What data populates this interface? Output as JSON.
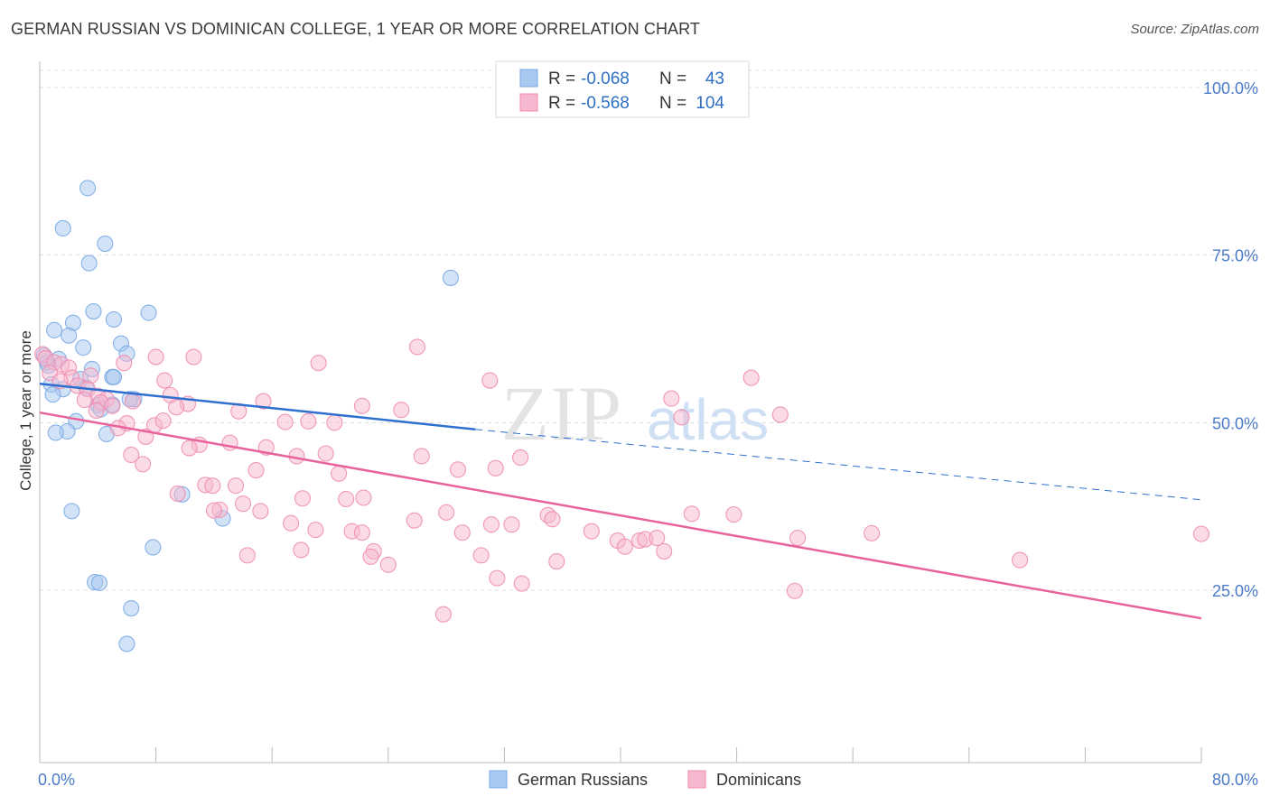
{
  "title": "GERMAN RUSSIAN VS DOMINICAN COLLEGE, 1 YEAR OR MORE CORRELATION CHART",
  "source": "Source: ZipAtlas.com",
  "watermark": {
    "zip": "ZIP",
    "atlas": "atlas"
  },
  "legend_top": {
    "rows": [
      {
        "r_label": "R =",
        "r_value": "-0.068",
        "n_label": "N =",
        "n_value": "43",
        "color": "#a8c8f0"
      },
      {
        "r_label": "R =",
        "r_value": "-0.568",
        "n_label": "N =",
        "n_value": "104",
        "color": "#f6b8ce"
      }
    ]
  },
  "chart_data": {
    "type": "scatter",
    "xlabel": "",
    "ylabel": "College, 1 year or more",
    "xlim": [
      0,
      80
    ],
    "ylim": [
      0,
      105
    ],
    "x_tick_labels": {
      "left": "0.0%",
      "right": "80.0%"
    },
    "y_ticks": [
      {
        "value": 100,
        "label": "100.0%"
      },
      {
        "value": 75,
        "label": "75.0%"
      },
      {
        "value": 50,
        "label": "50.0%"
      },
      {
        "value": 25,
        "label": "25.0%"
      }
    ],
    "grid": true,
    "legend_position": "top-center",
    "series": [
      {
        "name": "German Russians",
        "color": "#7aaae6",
        "fill": "#a8c8f0",
        "trend": {
          "x0": 0,
          "y0": 55.8,
          "x1": 30,
          "y1": 49.0,
          "dash_to_x": 80,
          "dash_to_y": 38.5
        },
        "points": [
          [
            3.3,
            85.0
          ],
          [
            1.6,
            79.0
          ],
          [
            4.5,
            76.7
          ],
          [
            3.4,
            73.8
          ],
          [
            28.3,
            71.6
          ],
          [
            3.7,
            66.6
          ],
          [
            7.5,
            66.4
          ],
          [
            5.1,
            65.4
          ],
          [
            2.3,
            64.9
          ],
          [
            1.0,
            63.8
          ],
          [
            2.0,
            63.0
          ],
          [
            3.0,
            61.2
          ],
          [
            5.6,
            61.8
          ],
          [
            6.0,
            60.3
          ],
          [
            0.3,
            60.0
          ],
          [
            1.3,
            59.5
          ],
          [
            0.5,
            59.0
          ],
          [
            0.6,
            58.5
          ],
          [
            3.6,
            58.0
          ],
          [
            0.8,
            55.7
          ],
          [
            2.8,
            56.5
          ],
          [
            5.0,
            56.8
          ],
          [
            5.1,
            56.8
          ],
          [
            3.2,
            55.2
          ],
          [
            1.6,
            55.0
          ],
          [
            0.9,
            54.2
          ],
          [
            6.5,
            53.5
          ],
          [
            4.0,
            52.6
          ],
          [
            5.0,
            52.7
          ],
          [
            4.2,
            52.0
          ],
          [
            2.5,
            50.2
          ],
          [
            1.9,
            48.7
          ],
          [
            1.1,
            48.5
          ],
          [
            4.6,
            48.3
          ],
          [
            9.8,
            39.3
          ],
          [
            12.6,
            35.7
          ],
          [
            2.2,
            36.8
          ],
          [
            7.8,
            31.4
          ],
          [
            3.8,
            26.2
          ],
          [
            4.1,
            26.1
          ],
          [
            6.3,
            22.3
          ],
          [
            6.0,
            17.0
          ],
          [
            6.2,
            53.5
          ]
        ]
      },
      {
        "name": "Dominicans",
        "color": "#f08db0",
        "fill": "#f6b8ce",
        "trend": {
          "x0": 0,
          "y0": 51.5,
          "x1": 80,
          "y1": 20.8
        },
        "points": [
          [
            0.2,
            60.2
          ],
          [
            0.4,
            59.6
          ],
          [
            1.0,
            59.0
          ],
          [
            1.5,
            58.7
          ],
          [
            2.0,
            58.2
          ],
          [
            0.7,
            57.4
          ],
          [
            3.5,
            57.0
          ],
          [
            2.2,
            56.7
          ],
          [
            1.4,
            56.2
          ],
          [
            2.6,
            55.5
          ],
          [
            3.3,
            55.0
          ],
          [
            4.0,
            54.0
          ],
          [
            4.6,
            53.5
          ],
          [
            3.1,
            53.4
          ],
          [
            4.2,
            53.0
          ],
          [
            5.0,
            52.5
          ],
          [
            3.9,
            51.8
          ],
          [
            6.4,
            53.2
          ],
          [
            5.8,
            58.9
          ],
          [
            8.0,
            59.8
          ],
          [
            10.6,
            59.8
          ],
          [
            26.0,
            61.3
          ],
          [
            19.2,
            58.9
          ],
          [
            8.6,
            56.3
          ],
          [
            9.0,
            54.1
          ],
          [
            10.2,
            52.8
          ],
          [
            9.4,
            52.3
          ],
          [
            15.4,
            53.2
          ],
          [
            13.7,
            51.7
          ],
          [
            20.3,
            50.0
          ],
          [
            18.5,
            50.2
          ],
          [
            16.9,
            50.1
          ],
          [
            22.2,
            52.5
          ],
          [
            24.9,
            51.9
          ],
          [
            6.0,
            49.9
          ],
          [
            7.9,
            49.6
          ],
          [
            5.4,
            49.2
          ],
          [
            8.5,
            50.3
          ],
          [
            7.3,
            47.9
          ],
          [
            11.0,
            46.7
          ],
          [
            13.1,
            47.0
          ],
          [
            15.6,
            46.3
          ],
          [
            10.3,
            46.2
          ],
          [
            17.7,
            45.0
          ],
          [
            19.7,
            45.4
          ],
          [
            6.3,
            45.2
          ],
          [
            7.1,
            43.8
          ],
          [
            14.9,
            42.9
          ],
          [
            20.6,
            42.4
          ],
          [
            26.3,
            45.0
          ],
          [
            28.8,
            43.0
          ],
          [
            31.4,
            43.2
          ],
          [
            33.1,
            44.8
          ],
          [
            31.0,
            56.3
          ],
          [
            43.5,
            53.6
          ],
          [
            44.2,
            50.8
          ],
          [
            49.0,
            56.7
          ],
          [
            51.0,
            51.2
          ],
          [
            11.4,
            40.7
          ],
          [
            13.5,
            40.6
          ],
          [
            11.9,
            40.6
          ],
          [
            9.5,
            39.4
          ],
          [
            18.1,
            38.7
          ],
          [
            21.1,
            38.6
          ],
          [
            22.3,
            38.8
          ],
          [
            14.0,
            37.9
          ],
          [
            12.4,
            37.0
          ],
          [
            15.2,
            36.8
          ],
          [
            12.0,
            36.9
          ],
          [
            25.8,
            35.4
          ],
          [
            28.0,
            36.6
          ],
          [
            31.1,
            34.8
          ],
          [
            32.5,
            34.8
          ],
          [
            35.0,
            36.2
          ],
          [
            35.3,
            35.6
          ],
          [
            44.9,
            36.4
          ],
          [
            47.8,
            36.3
          ],
          [
            17.3,
            35.0
          ],
          [
            19.0,
            34.0
          ],
          [
            21.5,
            33.8
          ],
          [
            22.2,
            33.6
          ],
          [
            29.1,
            33.6
          ],
          [
            30.4,
            30.2
          ],
          [
            38.0,
            33.8
          ],
          [
            39.8,
            32.4
          ],
          [
            40.3,
            31.5
          ],
          [
            41.3,
            32.4
          ],
          [
            41.7,
            32.6
          ],
          [
            42.5,
            32.8
          ],
          [
            43.0,
            30.8
          ],
          [
            52.2,
            32.8
          ],
          [
            57.3,
            33.5
          ],
          [
            67.5,
            29.5
          ],
          [
            18.0,
            31.0
          ],
          [
            23.0,
            30.8
          ],
          [
            22.8,
            30.0
          ],
          [
            24.0,
            28.8
          ],
          [
            35.6,
            29.3
          ],
          [
            31.5,
            26.8
          ],
          [
            33.2,
            26.0
          ],
          [
            14.3,
            30.2
          ],
          [
            52.0,
            24.9
          ],
          [
            27.8,
            21.4
          ],
          [
            80.0,
            33.4
          ]
        ]
      }
    ]
  },
  "bottom_legend": [
    {
      "label": "German Russians",
      "color": "#a8c8f0",
      "stroke": "#7aaae6"
    },
    {
      "label": "Dominicans",
      "color": "#f6b8ce",
      "stroke": "#f08db0"
    }
  ]
}
